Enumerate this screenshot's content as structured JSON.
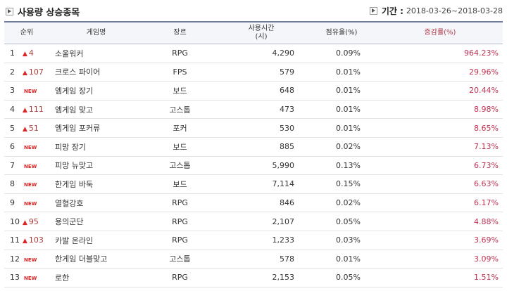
{
  "header": {
    "title": "사용량 상승종목",
    "period_label": "기간 :",
    "period_value": "2018-03-26~2018-03-28"
  },
  "columns": {
    "rank": "순위",
    "name": "게임명",
    "genre": "장르",
    "hours_line1": "사용시간",
    "hours_line2": "(시)",
    "share": "점유율(%)",
    "increase": "증감률(%)"
  },
  "new_badge": "NEW",
  "rows": [
    {
      "rank": "1",
      "change_type": "up",
      "change": "4",
      "name": "소울워커",
      "genre": "RPG",
      "hours": "4,290",
      "share": "0.09%",
      "increase": "964.23%"
    },
    {
      "rank": "2",
      "change_type": "up",
      "change": "107",
      "name": "크로스 파이어",
      "genre": "FPS",
      "hours": "579",
      "share": "0.01%",
      "increase": "29.96%"
    },
    {
      "rank": "3",
      "change_type": "new",
      "change": "",
      "name": "엠게임 장기",
      "genre": "보드",
      "hours": "648",
      "share": "0.01%",
      "increase": "20.44%"
    },
    {
      "rank": "4",
      "change_type": "up",
      "change": "111",
      "name": "엠게임 맞고",
      "genre": "고스톱",
      "hours": "473",
      "share": "0.01%",
      "increase": "8.98%"
    },
    {
      "rank": "5",
      "change_type": "up",
      "change": "51",
      "name": "엠게임 포커류",
      "genre": "포커",
      "hours": "530",
      "share": "0.01%",
      "increase": "8.65%"
    },
    {
      "rank": "6",
      "change_type": "new",
      "change": "",
      "name": "피망 장기",
      "genre": "보드",
      "hours": "885",
      "share": "0.02%",
      "increase": "7.13%"
    },
    {
      "rank": "7",
      "change_type": "new",
      "change": "",
      "name": "피망 뉴맞고",
      "genre": "고스톱",
      "hours": "5,990",
      "share": "0.13%",
      "increase": "6.73%"
    },
    {
      "rank": "8",
      "change_type": "new",
      "change": "",
      "name": "한게임 바둑",
      "genre": "보드",
      "hours": "7,114",
      "share": "0.15%",
      "increase": "6.63%"
    },
    {
      "rank": "9",
      "change_type": "new",
      "change": "",
      "name": "열혈강호",
      "genre": "RPG",
      "hours": "846",
      "share": "0.02%",
      "increase": "6.17%"
    },
    {
      "rank": "10",
      "change_type": "up",
      "change": "95",
      "name": "용의군단",
      "genre": "RPG",
      "hours": "2,107",
      "share": "0.05%",
      "increase": "4.88%"
    },
    {
      "rank": "11",
      "change_type": "up",
      "change": "103",
      "name": "카발 온라인",
      "genre": "RPG",
      "hours": "1,233",
      "share": "0.03%",
      "increase": "3.69%"
    },
    {
      "rank": "12",
      "change_type": "new",
      "change": "",
      "name": "한게임 더블맞고",
      "genre": "고스톱",
      "hours": "578",
      "share": "0.01%",
      "increase": "3.09%"
    },
    {
      "rank": "13",
      "change_type": "new",
      "change": "",
      "name": "로한",
      "genre": "RPG",
      "hours": "2,153",
      "share": "0.05%",
      "increase": "1.51%"
    }
  ]
}
